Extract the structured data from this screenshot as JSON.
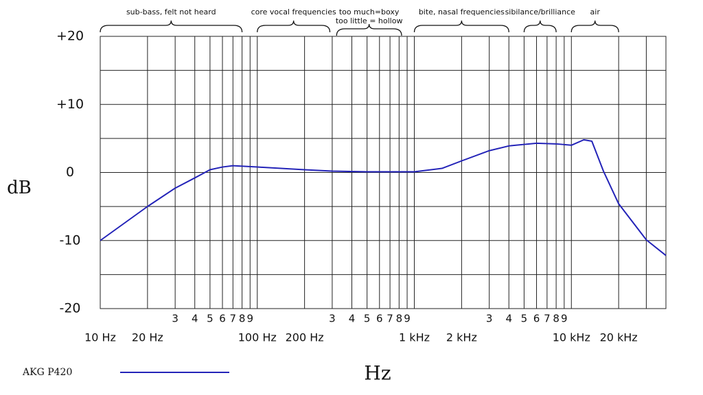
{
  "chart_data": {
    "type": "line",
    "xlabel": "Hz",
    "ylabel": "dB",
    "xscale": "log",
    "xlim": [
      10,
      40000
    ],
    "ylim": [
      -20,
      20
    ],
    "yticks": [
      {
        "value": 20,
        "label": "+20"
      },
      {
        "value": 10,
        "label": "+10"
      },
      0,
      -10,
      -20
    ],
    "ygrid": [
      15,
      5,
      -5,
      -15
    ],
    "xticks": [
      {
        "value": 10,
        "label": "10 Hz"
      },
      {
        "value": 20,
        "label": "20 Hz"
      },
      {
        "value": 30,
        "label": "3"
      },
      {
        "value": 40,
        "label": "4"
      },
      {
        "value": 50,
        "label": "5"
      },
      {
        "value": 60,
        "label": "6"
      },
      {
        "value": 70,
        "label": "7"
      },
      {
        "value": 80,
        "label": "8"
      },
      {
        "value": 90,
        "label": "9"
      },
      {
        "value": 100,
        "label": "100 Hz"
      },
      {
        "value": 200,
        "label": "200 Hz"
      },
      {
        "value": 300,
        "label": "3"
      },
      {
        "value": 400,
        "label": "4"
      },
      {
        "value": 500,
        "label": "5"
      },
      {
        "value": 600,
        "label": "6"
      },
      {
        "value": 700,
        "label": "7"
      },
      {
        "value": 800,
        "label": "8"
      },
      {
        "value": 900,
        "label": "9"
      },
      {
        "value": 1000,
        "label": "1 kHz"
      },
      {
        "value": 2000,
        "label": "2 kHz"
      },
      {
        "value": 3000,
        "label": "3"
      },
      {
        "value": 4000,
        "label": "4"
      },
      {
        "value": 5000,
        "label": "5"
      },
      {
        "value": 6000,
        "label": "6"
      },
      {
        "value": 7000,
        "label": "7"
      },
      {
        "value": 8000,
        "label": "8"
      },
      {
        "value": 9000,
        "label": "9"
      },
      {
        "value": 10000,
        "label": "10 kHz"
      },
      {
        "value": 20000,
        "label": "20 kHz"
      }
    ],
    "xgrid": [
      30000
    ],
    "grid": true,
    "annotations": [
      {
        "lines": [
          "sub-bass, felt not heard"
        ],
        "range": [
          10,
          80
        ]
      },
      {
        "lines": [
          "core vocal frequencies"
        ],
        "range": [
          100,
          290
        ]
      },
      {
        "lines": [
          "too much=boxy",
          "too little = hollow"
        ],
        "range": [
          320,
          830
        ]
      },
      {
        "lines": [
          "bite, nasal frequencies"
        ],
        "range": [
          1000,
          4000
        ]
      },
      {
        "lines": [
          "sibilance/brilliance"
        ],
        "range": [
          5000,
          8000
        ]
      },
      {
        "lines": [
          "air"
        ],
        "range": [
          10000,
          20000
        ]
      }
    ],
    "x": [
      10,
      20,
      30,
      40,
      50,
      60,
      70,
      100,
      200,
      300,
      500,
      1000,
      1500,
      2000,
      3000,
      4000,
      6000,
      8000,
      10000,
      12000,
      13500,
      16000,
      20000,
      30000,
      40000
    ],
    "series": [
      {
        "name": "AKG P420",
        "color": "#2323b8",
        "values": [
          -10,
          -5,
          -2.3,
          -0.8,
          0.4,
          0.8,
          1.0,
          0.8,
          0.4,
          0.2,
          0.1,
          0.1,
          0.6,
          1.7,
          3.2,
          3.9,
          4.3,
          4.2,
          4.0,
          4.8,
          4.6,
          0.2,
          -4.6,
          -9.9,
          -12.2
        ]
      }
    ]
  }
}
